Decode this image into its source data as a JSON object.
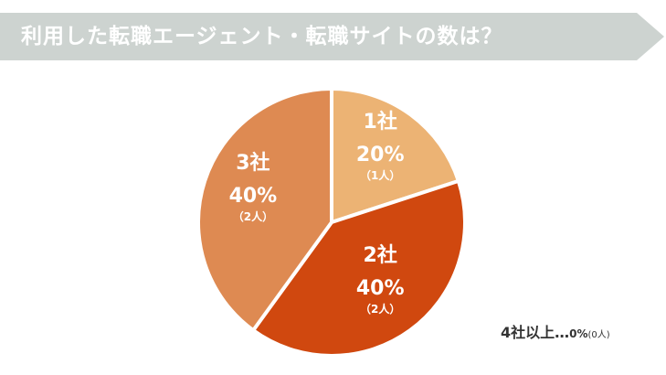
{
  "header": {
    "title": "利用した転職エージェント・転職サイトの数は？",
    "background_color": "#cdd3d0"
  },
  "chart_data": {
    "type": "pie",
    "title": "利用した転職エージェント・転職サイトの数は？",
    "slices": [
      {
        "name": "1社",
        "percent_label": "20%",
        "percent": 20,
        "count_label": "（1人）",
        "count": 1,
        "color": "#ecb374"
      },
      {
        "name": "2社",
        "percent_label": "40%",
        "percent": 40,
        "count_label": "（2人）",
        "count": 2,
        "color": "#d0480f"
      },
      {
        "name": "3社",
        "percent_label": "40%",
        "percent": 40,
        "count_label": "（2人）",
        "count": 2,
        "color": "#de8a52"
      }
    ],
    "start_angle_deg": 0,
    "direction": "clockwise"
  },
  "note": {
    "label": "4社以上",
    "ellipsis": "…",
    "percent": "0%",
    "count": "(0人)"
  }
}
